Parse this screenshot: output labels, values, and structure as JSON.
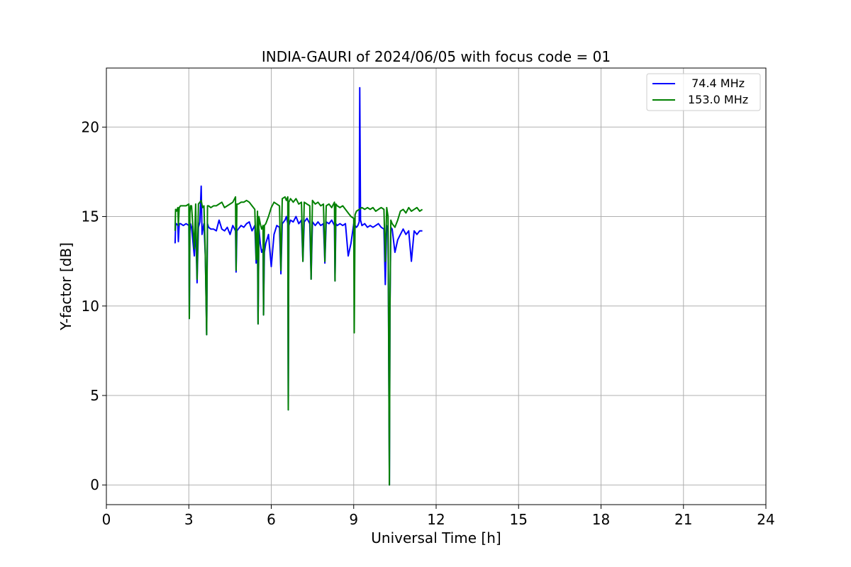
{
  "chart_data": {
    "type": "line",
    "title": "INDIA-GAURI of 2024/06/05 with focus code = 01",
    "xlabel": "Universal Time [h]",
    "ylabel": "Y-factor [dB]",
    "xlim": [
      0,
      24
    ],
    "ylim": [
      -1.1,
      23.3
    ],
    "xticks": [
      0,
      3,
      6,
      9,
      12,
      15,
      18,
      21,
      24
    ],
    "yticks": [
      0,
      5,
      10,
      15,
      20
    ],
    "grid": true,
    "legend_position": "top-right",
    "series": [
      {
        "name": " 74.4 MHz",
        "color": "#0000ff",
        "x": [
          2.5,
          2.52,
          2.55,
          2.6,
          2.62,
          2.65,
          2.7,
          2.8,
          2.9,
          3.0,
          3.02,
          3.04,
          3.06,
          3.1,
          3.2,
          3.25,
          3.3,
          3.35,
          3.4,
          3.45,
          3.48,
          3.5,
          3.55,
          3.6,
          3.65,
          3.68,
          3.72,
          3.8,
          3.9,
          4.0,
          4.1,
          4.2,
          4.3,
          4.4,
          4.5,
          4.6,
          4.7,
          4.72,
          4.75,
          4.8,
          4.9,
          5.0,
          5.1,
          5.2,
          5.3,
          5.4,
          5.45,
          5.5,
          5.52,
          5.55,
          5.6,
          5.65,
          5.7,
          5.72,
          5.75,
          5.8,
          5.9,
          6.0,
          6.1,
          6.2,
          6.3,
          6.35,
          6.4,
          6.5,
          6.55,
          6.6,
          6.62,
          6.64,
          6.7,
          6.8,
          6.9,
          7.0,
          7.1,
          7.15,
          7.2,
          7.3,
          7.4,
          7.45,
          7.5,
          7.6,
          7.7,
          7.8,
          7.9,
          7.95,
          8.0,
          8.1,
          8.2,
          8.3,
          8.32,
          8.35,
          8.4,
          8.5,
          8.6,
          8.7,
          8.8,
          8.9,
          9.0,
          9.02,
          9.05,
          9.1,
          9.15,
          9.2,
          9.22,
          9.25,
          9.3,
          9.4,
          9.5,
          9.6,
          9.7,
          9.8,
          9.9,
          10.0,
          10.1,
          10.15,
          10.2,
          10.25,
          10.3,
          10.32,
          10.35,
          10.4,
          10.5,
          10.6,
          10.7,
          10.8,
          10.9,
          11.0,
          11.1,
          11.2,
          11.3,
          11.4,
          11.5
        ],
        "y": [
          13.5,
          14.5,
          14.6,
          14.5,
          13.6,
          14.6,
          14.6,
          14.5,
          14.6,
          14.5,
          9.3,
          14.2,
          14.6,
          14.4,
          12.8,
          14.5,
          11.3,
          14.4,
          14.7,
          16.7,
          14.0,
          14.2,
          14.6,
          12.8,
          8.4,
          14.6,
          14.4,
          14.3,
          14.3,
          14.2,
          14.8,
          14.3,
          14.2,
          14.4,
          14.0,
          14.5,
          14.2,
          11.9,
          14.2,
          14.3,
          14.5,
          14.4,
          14.6,
          14.7,
          14.2,
          14.5,
          12.4,
          13.3,
          9.0,
          14.3,
          13.5,
          13.0,
          13.2,
          9.5,
          13.0,
          13.5,
          14.0,
          12.2,
          14.0,
          14.5,
          14.4,
          11.8,
          14.6,
          14.8,
          15.0,
          14.6,
          4.2,
          14.5,
          14.8,
          14.7,
          15.0,
          14.6,
          14.8,
          12.5,
          14.7,
          14.9,
          14.6,
          11.5,
          14.7,
          14.5,
          14.7,
          14.5,
          14.6,
          12.4,
          14.7,
          14.6,
          14.8,
          14.5,
          11.4,
          14.6,
          14.5,
          14.6,
          14.5,
          14.6,
          12.8,
          13.5,
          14.6,
          13.0,
          14.5,
          14.4,
          14.5,
          14.7,
          22.2,
          14.8,
          14.5,
          14.6,
          14.4,
          14.5,
          14.4,
          14.5,
          14.6,
          14.4,
          14.3,
          11.2,
          14.5,
          14.2,
          0.0,
          9.7,
          14.4,
          14.3,
          13.0,
          13.7,
          14.0,
          14.3,
          14.0,
          14.2,
          12.5,
          14.2,
          14.0,
          14.2,
          14.2
        ]
      },
      {
        "name": "153.0 MHz",
        "color": "#008000",
        "x": [
          2.5,
          2.52,
          2.55,
          2.6,
          2.62,
          2.65,
          2.7,
          2.8,
          2.9,
          3.0,
          3.02,
          3.04,
          3.06,
          3.1,
          3.2,
          3.25,
          3.3,
          3.35,
          3.4,
          3.45,
          3.5,
          3.55,
          3.6,
          3.65,
          3.68,
          3.72,
          3.8,
          3.9,
          4.0,
          4.1,
          4.2,
          4.3,
          4.4,
          4.5,
          4.6,
          4.7,
          4.72,
          4.75,
          4.8,
          4.9,
          5.0,
          5.1,
          5.2,
          5.3,
          5.4,
          5.45,
          5.5,
          5.52,
          5.55,
          5.6,
          5.65,
          5.7,
          5.72,
          5.75,
          5.8,
          5.9,
          6.0,
          6.1,
          6.2,
          6.3,
          6.35,
          6.4,
          6.5,
          6.55,
          6.6,
          6.62,
          6.64,
          6.7,
          6.8,
          6.9,
          7.0,
          7.1,
          7.15,
          7.2,
          7.3,
          7.4,
          7.45,
          7.5,
          7.6,
          7.7,
          7.8,
          7.9,
          7.95,
          8.0,
          8.1,
          8.2,
          8.3,
          8.32,
          8.35,
          8.4,
          8.5,
          8.6,
          8.7,
          8.8,
          8.9,
          9.0,
          9.02,
          9.05,
          9.1,
          9.2,
          9.3,
          9.4,
          9.5,
          9.6,
          9.7,
          9.8,
          9.9,
          10.0,
          10.1,
          10.15,
          10.2,
          10.25,
          10.3,
          10.32,
          10.35,
          10.4,
          10.5,
          10.6,
          10.7,
          10.8,
          10.9,
          11.0,
          11.1,
          11.2,
          11.3,
          11.4,
          11.5
        ],
        "y": [
          14.2,
          15.4,
          15.3,
          15.5,
          14.5,
          15.5,
          15.6,
          15.6,
          15.6,
          15.7,
          9.3,
          15.2,
          15.6,
          15.6,
          13.2,
          15.7,
          11.5,
          15.7,
          15.8,
          15.9,
          15.5,
          15.6,
          12.9,
          8.4,
          15.6,
          15.6,
          15.5,
          15.6,
          15.6,
          15.7,
          15.8,
          15.5,
          15.6,
          15.7,
          15.8,
          16.1,
          12.0,
          15.7,
          15.7,
          15.8,
          15.8,
          15.9,
          15.8,
          15.6,
          15.4,
          12.6,
          15.3,
          9.0,
          15.0,
          14.6,
          14.3,
          14.5,
          9.5,
          14.5,
          14.6,
          15.0,
          15.5,
          15.8,
          15.7,
          15.6,
          12.0,
          16.0,
          16.1,
          15.9,
          16.1,
          4.2,
          15.8,
          16.0,
          15.8,
          16.0,
          15.7,
          15.8,
          12.5,
          15.8,
          15.7,
          15.6,
          11.5,
          15.9,
          15.7,
          15.8,
          15.6,
          15.7,
          12.5,
          15.6,
          15.7,
          15.5,
          15.8,
          11.4,
          15.7,
          15.6,
          15.5,
          15.6,
          15.4,
          15.2,
          15.0,
          14.9,
          8.5,
          15.1,
          15.3,
          15.4,
          15.5,
          15.4,
          15.5,
          15.4,
          15.5,
          15.3,
          15.4,
          15.5,
          15.4,
          12.5,
          15.5,
          15.0,
          0.0,
          10.0,
          14.8,
          14.6,
          14.4,
          14.8,
          15.3,
          15.4,
          15.2,
          15.5,
          15.3,
          15.4,
          15.5,
          15.3,
          15.4
        ]
      }
    ]
  }
}
